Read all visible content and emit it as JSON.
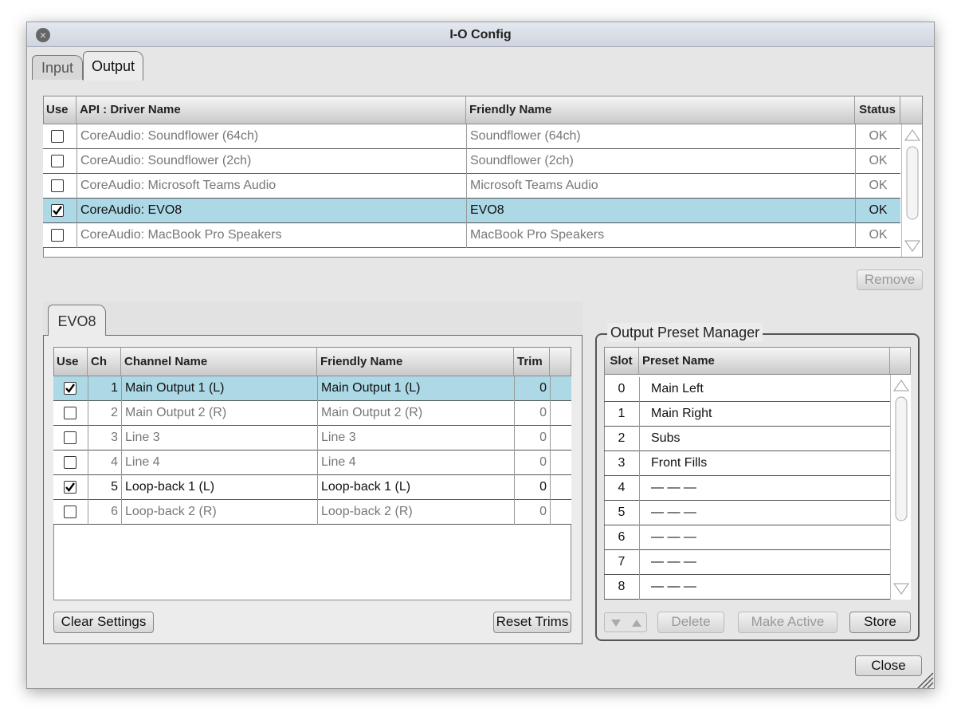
{
  "window": {
    "title": "I-O Config"
  },
  "tabs": {
    "items": [
      "Input",
      "Output"
    ],
    "active": 1
  },
  "devices": {
    "columns": [
      "Use",
      "API : Driver Name",
      "Friendly Name",
      "Status"
    ],
    "selected": 3,
    "rows": [
      {
        "use": false,
        "driver": "CoreAudio: Soundflower (64ch)",
        "friendly": "Soundflower (64ch)",
        "status": "OK"
      },
      {
        "use": false,
        "driver": "CoreAudio: Soundflower (2ch)",
        "friendly": "Soundflower (2ch)",
        "status": "OK"
      },
      {
        "use": false,
        "driver": "CoreAudio: Microsoft Teams Audio",
        "friendly": "Microsoft Teams Audio",
        "status": "OK"
      },
      {
        "use": true,
        "driver": "CoreAudio: EVO8",
        "friendly": "EVO8",
        "status": "OK"
      },
      {
        "use": false,
        "driver": "CoreAudio: MacBook Pro Speakers",
        "friendly": "MacBook Pro Speakers",
        "status": "OK"
      }
    ]
  },
  "remove": {
    "label": "Remove",
    "enabled": false
  },
  "device_tab": "EVO8",
  "channels": {
    "columns": [
      "Use",
      "Ch",
      "Channel Name",
      "Friendly Name",
      "Trim"
    ],
    "selected": 0,
    "rows": [
      {
        "use": true,
        "ch": 1,
        "name": "Main Output 1 (L)",
        "friendly": "Main Output 1 (L)",
        "trim": 0
      },
      {
        "use": false,
        "ch": 2,
        "name": "Main Output 2 (R)",
        "friendly": "Main Output 2 (R)",
        "trim": 0
      },
      {
        "use": false,
        "ch": 3,
        "name": "Line 3",
        "friendly": "Line 3",
        "trim": 0
      },
      {
        "use": false,
        "ch": 4,
        "name": "Line 4",
        "friendly": "Line 4",
        "trim": 0
      },
      {
        "use": true,
        "ch": 5,
        "name": "Loop-back 1 (L)",
        "friendly": "Loop-back 1 (L)",
        "trim": 0
      },
      {
        "use": false,
        "ch": 6,
        "name": "Loop-back 2 (R)",
        "friendly": "Loop-back 2 (R)",
        "trim": 0
      }
    ]
  },
  "clear_settings": {
    "label": "Clear Settings",
    "enabled": true
  },
  "reset_trims": {
    "label": "Reset Trims",
    "enabled": true
  },
  "preset_manager": {
    "title": "Output Preset Manager",
    "columns": [
      "Slot",
      "Preset Name"
    ],
    "rows": [
      {
        "slot": 0,
        "name": "Main Left"
      },
      {
        "slot": 1,
        "name": "Main Right"
      },
      {
        "slot": 2,
        "name": "Subs"
      },
      {
        "slot": 3,
        "name": "Front Fills"
      },
      {
        "slot": 4,
        "name": "— — —"
      },
      {
        "slot": 5,
        "name": "— — —"
      },
      {
        "slot": 6,
        "name": "— — —"
      },
      {
        "slot": 7,
        "name": "— — —"
      },
      {
        "slot": 8,
        "name": "— — —"
      }
    ],
    "buttons": [
      {
        "label": "Delete",
        "enabled": false
      },
      {
        "label": "Make Active",
        "enabled": false
      },
      {
        "label": "Store",
        "enabled": true
      }
    ]
  },
  "close": {
    "label": "Close",
    "enabled": true
  }
}
